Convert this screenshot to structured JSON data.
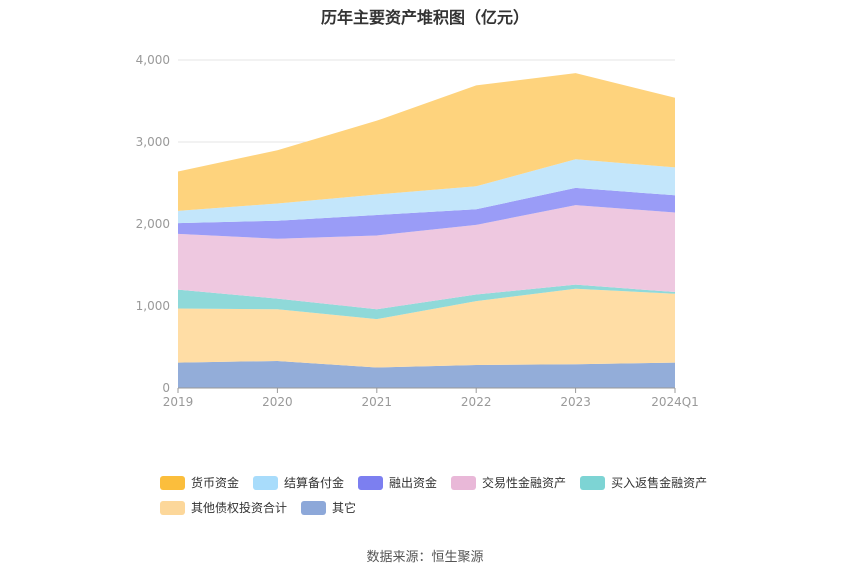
{
  "chart_data": {
    "type": "area",
    "stacked": true,
    "title": "历年主要资产堆积图（亿元）",
    "x": [
      "2019",
      "2020",
      "2021",
      "2022",
      "2023",
      "2024Q1"
    ],
    "yticks": [
      "0",
      "1,000",
      "2,000",
      "3,000",
      "4,000"
    ],
    "ylim": [
      0,
      4000
    ],
    "grid": true,
    "legend_position": "bottom",
    "series": [
      {
        "name": "其它",
        "color": "#93add9",
        "values": [
          310,
          330,
          250,
          280,
          290,
          310
        ]
      },
      {
        "name": "其他债权投资合计",
        "color": "#ffdda5",
        "values": [
          660,
          630,
          590,
          780,
          920,
          840
        ]
      },
      {
        "name": "买入返售金融资产",
        "color": "#8fd9d9",
        "values": [
          230,
          130,
          120,
          80,
          50,
          20
        ]
      },
      {
        "name": "交易性金融资产",
        "color": "#eec8e0",
        "values": [
          680,
          730,
          900,
          850,
          970,
          970
        ]
      },
      {
        "name": "融出资金",
        "color": "#9a9cf7",
        "values": [
          130,
          220,
          250,
          190,
          210,
          210
        ]
      },
      {
        "name": "结算备付金",
        "color": "#c3e6fb",
        "values": [
          150,
          210,
          250,
          280,
          350,
          340
        ]
      },
      {
        "name": "货币资金",
        "color": "#fed37d",
        "values": [
          480,
          650,
          900,
          1230,
          1050,
          850
        ]
      }
    ]
  },
  "legend": {
    "items": [
      {
        "label": "货币资金",
        "color": "#fbbe3c"
      },
      {
        "label": "结算备付金",
        "color": "#a8dcfb"
      },
      {
        "label": "融出资金",
        "color": "#7c7ff0"
      },
      {
        "label": "交易性金融资产",
        "color": "#e9b8d8"
      },
      {
        "label": "买入返售金融资产",
        "color": "#7dd4d4"
      },
      {
        "label": "其他债权投资合计",
        "color": "#fcd79a"
      },
      {
        "label": "其它",
        "color": "#8da8d9"
      }
    ]
  },
  "source": "数据来源：恒生聚源"
}
